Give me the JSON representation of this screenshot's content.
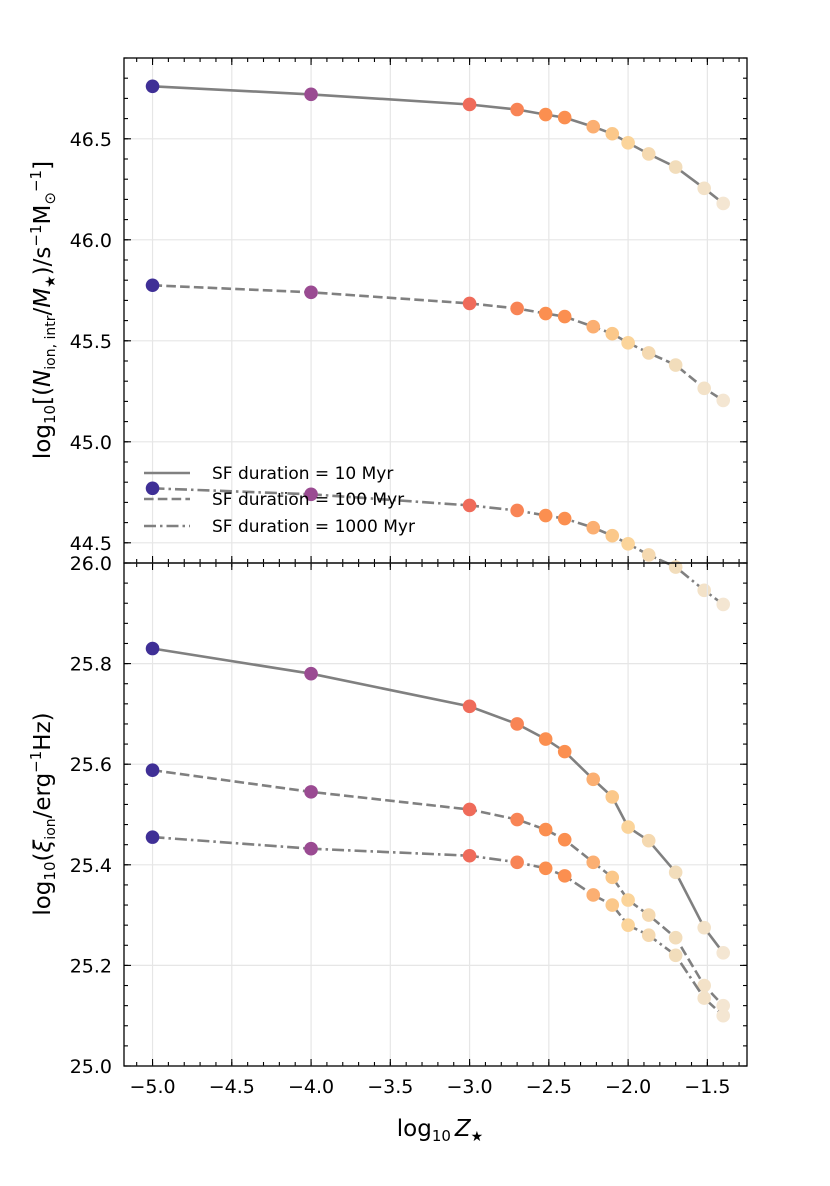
{
  "chart_data": [
    {
      "type": "line",
      "panel": "top",
      "title": "",
      "xlabel": "log10 Z★",
      "ylabel_parts": {
        "pre": "log",
        "sub1": "10",
        "mid": "[(",
        "n": "N",
        "sub2": "ion, intr",
        "slash": "/",
        "m": "M",
        "sub3": "★",
        "mid2": ")/s",
        "sup1": "−1",
        "tail": "M",
        "sub4": "⊙",
        "sup2": "−1",
        "close": "]"
      },
      "ylim": [
        44.4,
        46.9
      ],
      "xlim": [
        -5.18,
        -1.25
      ],
      "yticks": [
        44.5,
        45.0,
        45.5,
        46.0,
        46.5
      ],
      "ytick_labels": [
        "44.5",
        "45.0",
        "45.5",
        "46.0",
        "46.5"
      ],
      "grid": true,
      "legend_placement": "lower-left",
      "x": [
        -5.0,
        -4.0,
        -3.0,
        -2.7,
        -2.52,
        -2.4,
        -2.22,
        -2.1,
        -2.0,
        -1.87,
        -1.7,
        -1.52,
        -1.4
      ],
      "series": [
        {
          "name": "SF duration = 10 Myr",
          "style": "solid",
          "values": [
            46.76,
            46.72,
            46.67,
            46.645,
            46.62,
            46.605,
            46.56,
            46.525,
            46.48,
            46.425,
            46.36,
            46.255,
            46.18
          ]
        },
        {
          "name": "SF duration = 100 Myr",
          "style": "dashed",
          "values": [
            45.775,
            45.74,
            45.685,
            45.66,
            45.635,
            45.62,
            45.57,
            45.535,
            45.49,
            45.44,
            45.38,
            45.265,
            45.205
          ]
        },
        {
          "name": "SF duration = 1000 Myr",
          "style": "dashdot",
          "values": [
            44.77,
            44.74,
            44.685,
            44.66,
            44.635,
            44.62,
            44.575,
            44.535,
            44.495,
            44.44,
            44.38,
            44.265,
            44.195
          ]
        }
      ]
    },
    {
      "type": "line",
      "panel": "bottom",
      "title": "",
      "xlabel": "log10 Z★",
      "ylabel_parts": {
        "pre": "log",
        "sub1": "10",
        "mid": "(",
        "xi": "ξ",
        "sub2": "ion",
        "rest": "/erg",
        "sup1": "−1",
        "close": "Hz)"
      },
      "ylim": [
        25.0,
        26.0
      ],
      "xlim": [
        -5.18,
        -1.25
      ],
      "yticks": [
        25.0,
        25.2,
        25.4,
        25.6,
        25.8,
        26.0
      ],
      "ytick_labels": [
        "25.0",
        "25.2",
        "25.4",
        "25.6",
        "25.8",
        "26.0"
      ],
      "grid": true,
      "x": [
        -5.0,
        -4.0,
        -3.0,
        -2.7,
        -2.52,
        -2.4,
        -2.22,
        -2.1,
        -2.0,
        -1.87,
        -1.7,
        -1.52,
        -1.4
      ],
      "series": [
        {
          "name": "SF duration = 10 Myr",
          "style": "solid",
          "values": [
            25.83,
            25.78,
            25.715,
            25.68,
            25.65,
            25.625,
            25.57,
            25.535,
            25.475,
            25.448,
            25.385,
            25.275,
            25.225
          ]
        },
        {
          "name": "SF duration = 100 Myr",
          "style": "dashed",
          "values": [
            25.588,
            25.545,
            25.51,
            25.49,
            25.47,
            25.45,
            25.405,
            25.375,
            25.33,
            25.3,
            25.255,
            25.16,
            25.12
          ]
        },
        {
          "name": "SF duration = 1000 Myr",
          "style": "dashdot",
          "values": [
            25.455,
            25.432,
            25.418,
            25.405,
            25.393,
            25.378,
            25.34,
            25.32,
            25.28,
            25.26,
            25.22,
            25.135,
            25.1
          ]
        }
      ]
    }
  ],
  "x_ticks": [
    -5.0,
    -4.5,
    -4.0,
    -3.5,
    -3.0,
    -2.5,
    -2.0,
    -1.5
  ],
  "x_tick_labels": [
    "−5.0",
    "−4.5",
    "−4.0",
    "−3.5",
    "−3.0",
    "−2.5",
    "−2.0",
    "−1.5"
  ],
  "xlabel_parts": {
    "pre": "log",
    "sub": "10",
    "z": "Z",
    "star": "★"
  },
  "legend": {
    "prefix": "SF duration",
    "eq": " = ",
    "values": [
      "10 Myr",
      "100 Myr",
      "1000 Myr"
    ]
  },
  "colors": {
    "line": "#808080",
    "markers": [
      "#3f2f96",
      "#9a4b92",
      "#ef6b5a",
      "#f88455",
      "#fb8f50",
      "#fb8f50",
      "#fbaf72",
      "#fbc88a",
      "#fbd49a",
      "#f5d9b0",
      "#f2ddbb",
      "#f3e2c8",
      "#f4e6d2"
    ]
  }
}
